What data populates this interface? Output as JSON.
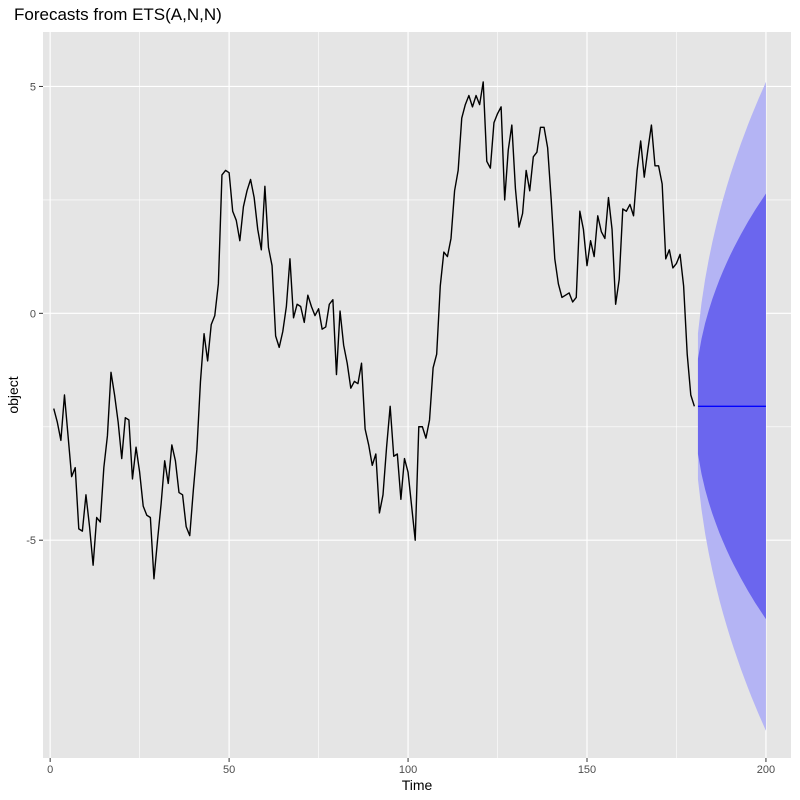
{
  "chart_data": {
    "type": "line",
    "title": "Forecasts from ETS(A,N,N)",
    "xlabel": "Time",
    "ylabel": "object",
    "xlim": [
      -2,
      207
    ],
    "ylim": [
      -9.8,
      6.2
    ],
    "x_ticks": [
      0,
      50,
      100,
      150,
      200
    ],
    "x_tick_labels": [
      "0",
      "50",
      "100",
      "150",
      "200"
    ],
    "y_ticks": [
      -5,
      0,
      5
    ],
    "y_tick_labels": [
      "-5",
      "0",
      "5"
    ],
    "grid": true,
    "legend": "none",
    "background_color": "#e5e5e5",
    "grid_color": "#ffffff",
    "series": [
      {
        "x_start": 1,
        "color": "#000000",
        "values": [
          -2.1,
          -2.4,
          -2.8,
          -1.8,
          -2.7,
          -3.6,
          -3.4,
          -4.75,
          -4.8,
          -4.0,
          -4.7,
          -5.55,
          -4.5,
          -4.6,
          -3.4,
          -2.7,
          -1.3,
          -1.8,
          -2.4,
          -3.2,
          -2.3,
          -2.35,
          -3.65,
          -2.95,
          -3.5,
          -4.25,
          -4.45,
          -4.5,
          -5.85,
          -5.0,
          -4.2,
          -3.25,
          -3.75,
          -2.9,
          -3.25,
          -3.95,
          -4.0,
          -4.7,
          -4.9,
          -3.9,
          -3.0,
          -1.5,
          -0.45,
          -1.05,
          -0.25,
          -0.05,
          0.65,
          3.05,
          3.15,
          3.1,
          2.25,
          2.05,
          1.6,
          2.35,
          2.7,
          2.95,
          2.55,
          1.85,
          1.4,
          2.8,
          1.45,
          1.05,
          -0.5,
          -0.75,
          -0.4,
          0.15,
          1.2,
          -0.1,
          0.2,
          0.15,
          -0.2,
          0.4,
          0.15,
          -0.05,
          0.1,
          -0.35,
          -0.3,
          0.2,
          0.3,
          -1.35,
          0.05,
          -0.7,
          -1.1,
          -1.65,
          -1.5,
          -1.55,
          -1.1,
          -2.55,
          -2.9,
          -3.35,
          -3.1,
          -4.4,
          -4.0,
          -2.95,
          -2.05,
          -3.15,
          -3.1,
          -4.1,
          -3.2,
          -3.5,
          -4.25,
          -5.0,
          -2.5,
          -2.5,
          -2.75,
          -2.35,
          -1.2,
          -0.9,
          0.6,
          1.35,
          1.25,
          1.65,
          2.7,
          3.15,
          4.3,
          4.6,
          4.8,
          4.55,
          4.8,
          4.6,
          5.1,
          3.35,
          3.2,
          4.2,
          4.4,
          4.55,
          2.5,
          3.6,
          4.15,
          2.75,
          1.9,
          2.2,
          3.15,
          2.7,
          3.45,
          3.55,
          4.1,
          4.1,
          3.65,
          2.5,
          1.2,
          0.65,
          0.35,
          0.4,
          0.45,
          0.25,
          0.35,
          2.25,
          1.85,
          1.05,
          1.6,
          1.25,
          2.15,
          1.8,
          1.65,
          2.55,
          1.85,
          0.2,
          0.75,
          2.3,
          2.25,
          2.4,
          2.15,
          3.15,
          3.8,
          3.0,
          3.6,
          4.15,
          3.25,
          3.25,
          2.85,
          1.2,
          1.4,
          1.0,
          1.1,
          1.3,
          0.6,
          -0.9,
          -1.8,
          -2.05
        ]
      }
    ],
    "forecast": {
      "color": "#0000ff",
      "x": [
        181,
        182,
        183,
        184,
        185,
        186,
        187,
        188,
        189,
        190,
        191,
        192,
        193,
        194,
        195,
        196,
        197,
        198,
        199,
        200
      ],
      "mean": [
        -2.05,
        -2.05,
        -2.05,
        -2.05,
        -2.05,
        -2.05,
        -2.05,
        -2.05,
        -2.05,
        -2.05,
        -2.05,
        -2.05,
        -2.05,
        -2.05,
        -2.05,
        -2.05,
        -2.05,
        -2.05,
        -2.05,
        -2.05
      ],
      "intervals": [
        {
          "level": 80,
          "color": "#6b66ee",
          "lower": [
            -3.1,
            -3.54,
            -3.88,
            -4.16,
            -4.41,
            -4.63,
            -4.84,
            -5.03,
            -5.21,
            -5.38,
            -5.54,
            -5.69,
            -5.84,
            -5.98,
            -6.12,
            -6.25,
            -6.38,
            -6.5,
            -6.62,
            -6.74
          ],
          "upper": [
            -1.0,
            -0.56,
            -0.22,
            0.06,
            0.31,
            0.53,
            0.74,
            0.93,
            1.11,
            1.28,
            1.44,
            1.59,
            1.74,
            1.88,
            2.02,
            2.15,
            2.28,
            2.4,
            2.52,
            2.64
          ]
        },
        {
          "level": 95,
          "color": "#b4b4f4",
          "lower": [
            -3.66,
            -4.33,
            -4.85,
            -5.28,
            -5.66,
            -6.0,
            -6.32,
            -6.61,
            -6.88,
            -7.14,
            -7.38,
            -7.61,
            -7.84,
            -8.05,
            -8.26,
            -8.46,
            -8.65,
            -8.84,
            -9.02,
            -9.2
          ],
          "upper": [
            -0.44,
            0.23,
            0.75,
            1.18,
            1.56,
            1.9,
            2.22,
            2.51,
            2.78,
            3.04,
            3.28,
            3.51,
            3.74,
            3.95,
            4.16,
            4.36,
            4.55,
            4.74,
            4.92,
            5.1
          ]
        }
      ]
    }
  }
}
